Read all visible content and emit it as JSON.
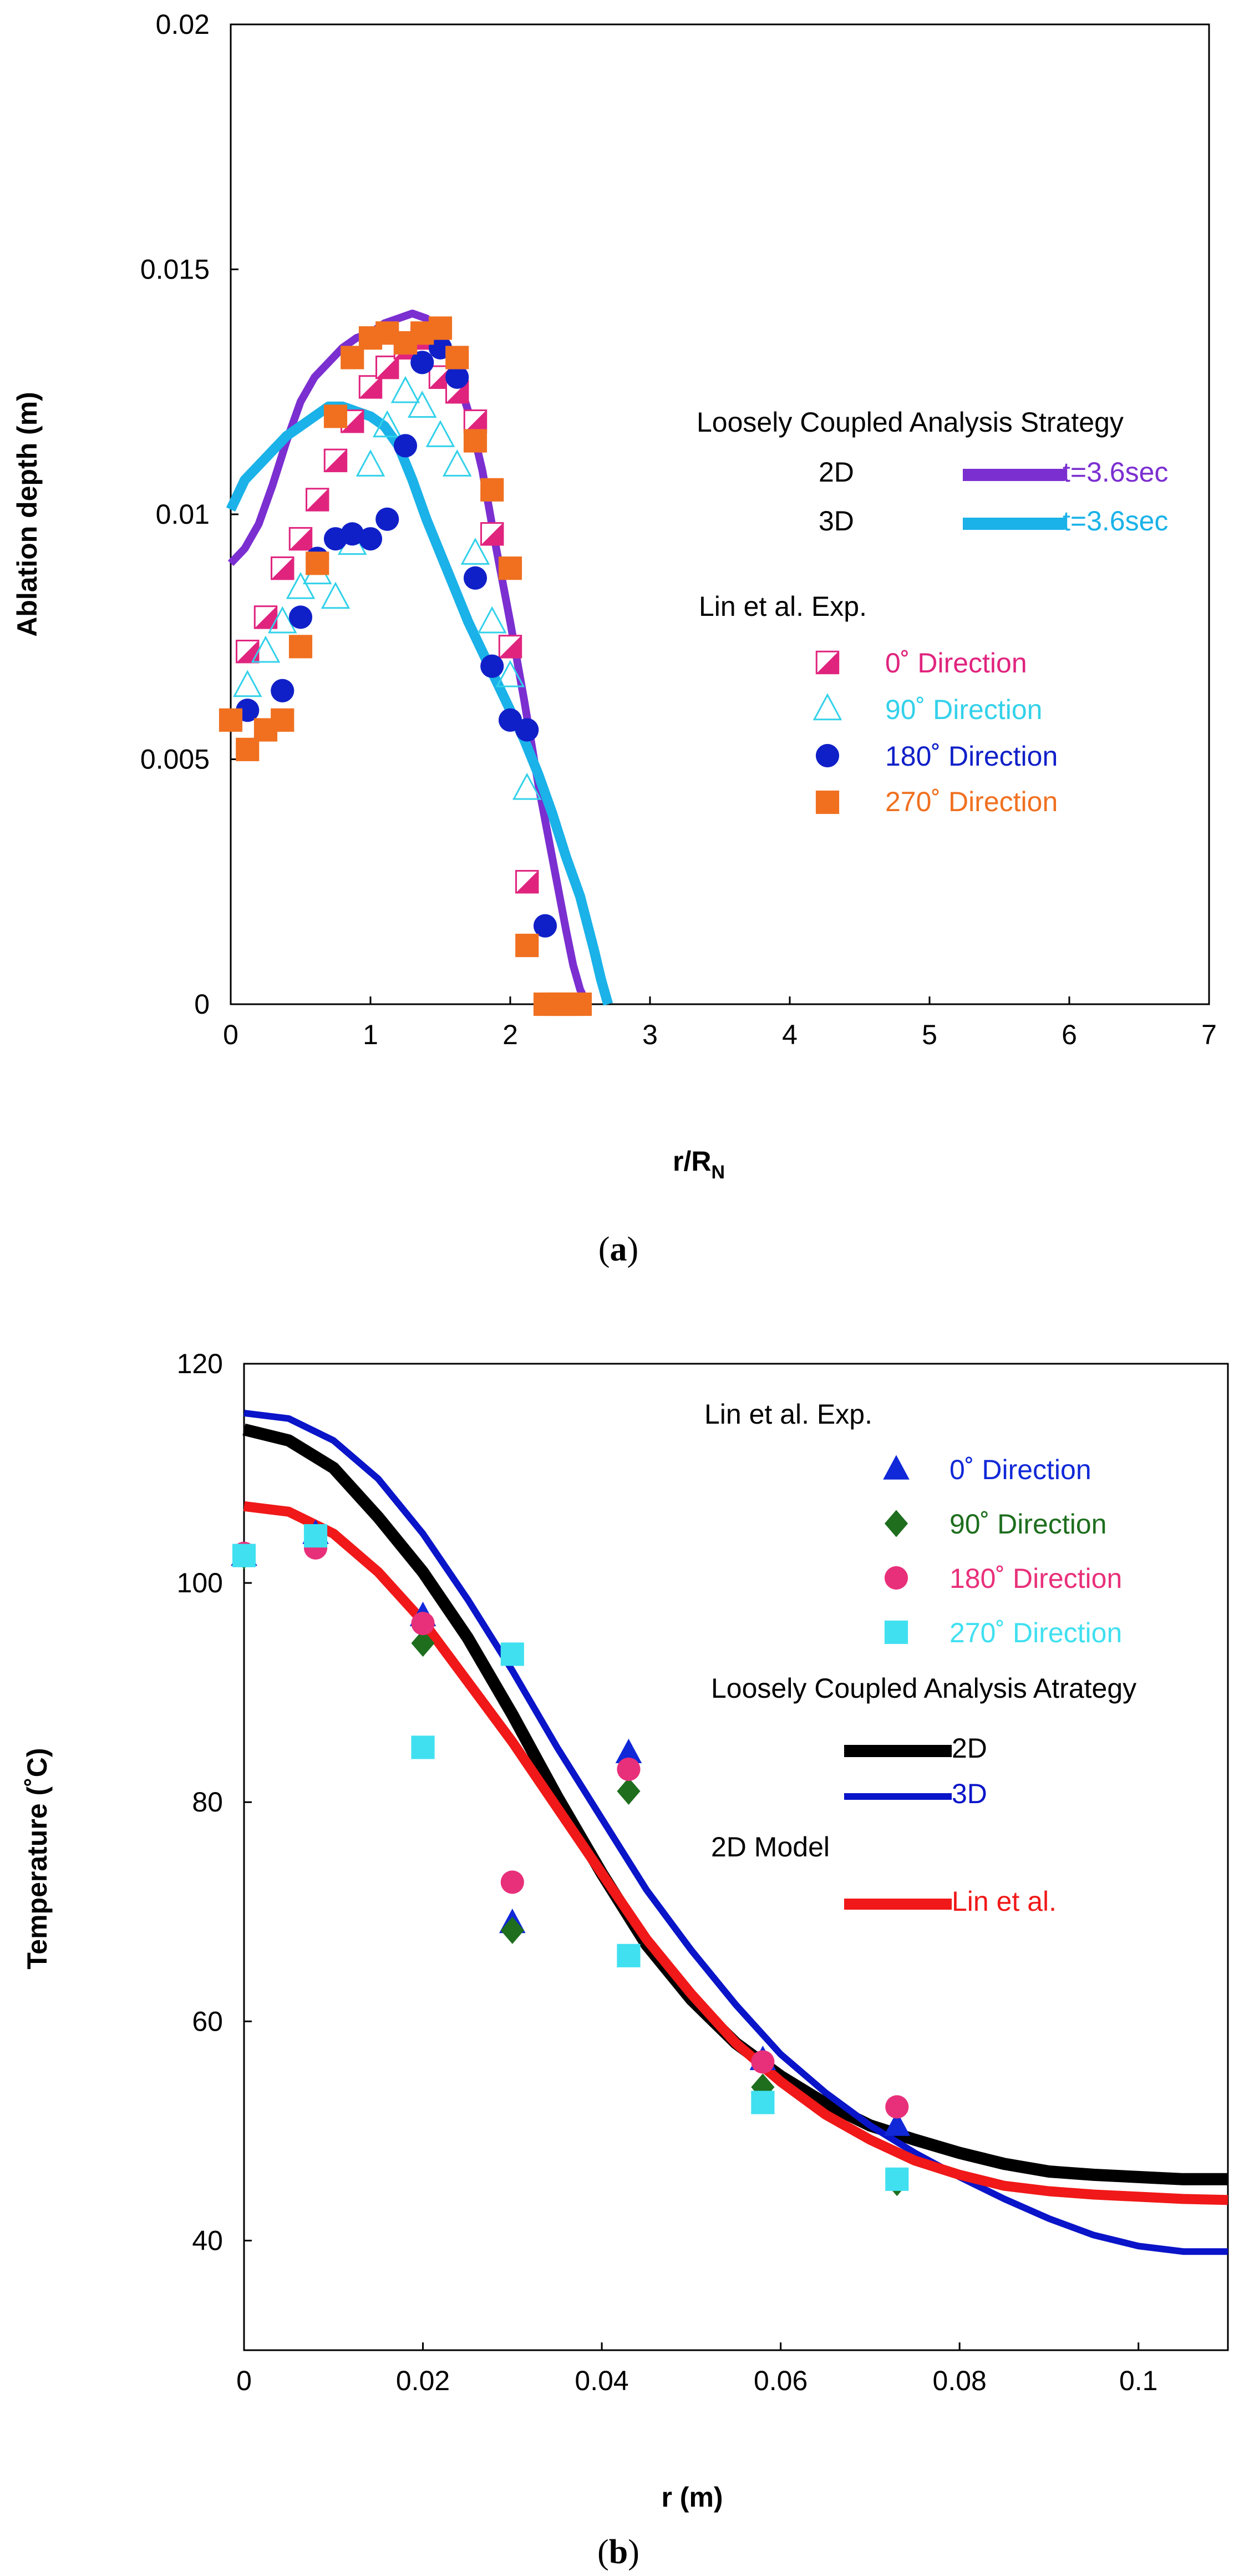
{
  "figure": {
    "panels": [
      "a",
      "b"
    ]
  },
  "chart_data": [
    {
      "panel": "a",
      "type": "scatter",
      "xlabel": "r/R",
      "xlabel_sub": "N",
      "ylabel": "Ablation depth (m)",
      "xlim": [
        0,
        7
      ],
      "ylim": [
        0,
        0.02
      ],
      "xticks": [
        0,
        1,
        2,
        3,
        4,
        5,
        6,
        7
      ],
      "xtick_labels": [
        "0",
        "1",
        "2",
        "3",
        "4",
        "5",
        "6",
        "7"
      ],
      "yticks": [
        0,
        0.005,
        0.01,
        0.015,
        0.02
      ],
      "ytick_labels": [
        "0",
        "0.005",
        "0.01",
        "0.015",
        "0.02"
      ],
      "grid": false,
      "legend": {
        "placement": "right",
        "line_title": "Loosely Coupled Analysis Strategy",
        "marker_title": "Lin et al. Exp."
      },
      "lines": [
        {
          "name": "2D",
          "label": "t=3.6sec",
          "color": "#7B2FD0",
          "x": [
            0,
            0.1,
            0.2,
            0.3,
            0.4,
            0.5,
            0.6,
            0.7,
            0.8,
            0.9,
            1.0,
            1.1,
            1.2,
            1.3,
            1.4,
            1.5,
            1.6,
            1.7,
            1.8,
            1.9,
            2.0,
            2.1,
            2.2,
            2.3,
            2.4,
            2.45,
            2.5,
            2.55
          ],
          "y": [
            0.009,
            0.0093,
            0.0098,
            0.0106,
            0.0115,
            0.0123,
            0.0128,
            0.0131,
            0.0134,
            0.0136,
            0.0137,
            0.0139,
            0.014,
            0.0141,
            0.014,
            0.0137,
            0.013,
            0.0121,
            0.0109,
            0.0093,
            0.0078,
            0.0062,
            0.0045,
            0.003,
            0.0015,
            0.0008,
            0.0003,
            0
          ]
        },
        {
          "name": "3D",
          "label": "t=3.6sec",
          "color": "#1AB2E8",
          "x": [
            0,
            0.1,
            0.2,
            0.3,
            0.4,
            0.5,
            0.6,
            0.7,
            0.8,
            0.9,
            1.0,
            1.1,
            1.2,
            1.3,
            1.4,
            1.5,
            1.6,
            1.7,
            1.8,
            1.9,
            2.0,
            2.1,
            2.2,
            2.3,
            2.4,
            2.5,
            2.6,
            2.65,
            2.7
          ],
          "y": [
            0.0101,
            0.0107,
            0.011,
            0.0113,
            0.0116,
            0.0118,
            0.012,
            0.0122,
            0.0122,
            0.0121,
            0.012,
            0.0118,
            0.0114,
            0.0107,
            0.0099,
            0.0092,
            0.0085,
            0.0078,
            0.0072,
            0.0066,
            0.006,
            0.0054,
            0.0047,
            0.0039,
            0.003,
            0.0022,
            0.0011,
            0.0005,
            0
          ]
        }
      ],
      "series": [
        {
          "name": "0˚  Direction",
          "marker": "half-square",
          "color": "#E0247E",
          "x": [
            0.12,
            0.25,
            0.37,
            0.5,
            0.62,
            0.75,
            0.87,
            1.0,
            1.12,
            1.25,
            1.37,
            1.5,
            1.62,
            1.75,
            1.87,
            2.0,
            2.12
          ],
          "y": [
            0.0072,
            0.0079,
            0.0089,
            0.0095,
            0.0103,
            0.0111,
            0.0119,
            0.0126,
            0.013,
            0.0134,
            0.0136,
            0.0128,
            0.0125,
            0.0119,
            0.0096,
            0.0073,
            0.0025
          ]
        },
        {
          "name": "90˚  Direction",
          "marker": "triangle-open",
          "color": "#33D1EA",
          "x": [
            0.12,
            0.25,
            0.37,
            0.5,
            0.62,
            0.75,
            0.87,
            1.0,
            1.12,
            1.25,
            1.37,
            1.5,
            1.62,
            1.75,
            1.87,
            2.0,
            2.12
          ],
          "y": [
            0.0065,
            0.0072,
            0.0078,
            0.0085,
            0.0088,
            0.0083,
            0.0094,
            0.011,
            0.0118,
            0.0125,
            0.0122,
            0.0116,
            0.011,
            0.0092,
            0.0078,
            0.0067,
            0.0044
          ]
        },
        {
          "name": "180˚  Direction",
          "marker": "circle",
          "color": "#1020C8",
          "x": [
            0.12,
            0.25,
            0.37,
            0.5,
            0.62,
            0.75,
            0.87,
            1.0,
            1.12,
            1.25,
            1.37,
            1.5,
            1.62,
            1.75,
            1.87,
            2.0,
            2.12,
            2.25
          ],
          "y": [
            0.006,
            0.0056,
            0.0064,
            0.0079,
            0.0091,
            0.0095,
            0.0096,
            0.0095,
            0.0099,
            0.0114,
            0.0131,
            0.0134,
            0.0128,
            0.0087,
            0.0069,
            0.0058,
            0.0056,
            0.0016
          ]
        },
        {
          "name": "270˚  Direction",
          "marker": "square",
          "color": "#F07020",
          "x": [
            0,
            0.12,
            0.25,
            0.37,
            0.5,
            0.62,
            0.75,
            0.87,
            1.0,
            1.12,
            1.25,
            1.37,
            1.5,
            1.62,
            1.75,
            1.87,
            2.0,
            2.12,
            2.25,
            2.3,
            2.35,
            2.4,
            2.45,
            2.5
          ],
          "y": [
            0.0058,
            0.0052,
            0.0056,
            0.0058,
            0.0073,
            0.009,
            0.012,
            0.0132,
            0.0136,
            0.0137,
            0.0135,
            0.0137,
            0.0138,
            0.0132,
            0.0115,
            0.0105,
            0.0089,
            0.0012,
            0,
            0,
            0,
            0,
            0,
            0
          ]
        }
      ]
    },
    {
      "panel": "b",
      "type": "scatter",
      "xlabel": "r (m)",
      "ylabel": "Temperature (˚C)",
      "xlim": [
        0,
        0.11
      ],
      "ylim": [
        30,
        120
      ],
      "xticks": [
        0,
        0.02,
        0.04,
        0.06,
        0.08,
        0.1
      ],
      "xtick_labels": [
        "0",
        "0.02",
        "0.04",
        "0.06",
        "0.08",
        "0.1"
      ],
      "yticks": [
        40,
        60,
        80,
        100,
        120
      ],
      "ytick_labels": [
        "40",
        "60",
        "80",
        "100",
        "120"
      ],
      "grid": false,
      "legend": {
        "placement": "right",
        "marker_title": "Lin et al. Exp.",
        "line_title": "Loosely Coupled Analysis Atrategy",
        "model_title": "2D Model"
      },
      "series": [
        {
          "name": "0˚  Direction",
          "marker": "triangle",
          "color": "#1028D8",
          "x": [
            0,
            0.008,
            0.02,
            0.03,
            0.043,
            0.058,
            0.073
          ],
          "y": [
            102.5,
            104.5,
            97,
            69,
            84.5,
            56.5,
            50.5
          ]
        },
        {
          "name": "90˚  Direction",
          "marker": "diamond",
          "color": "#1E6E1E",
          "x": [
            0,
            0.008,
            0.02,
            0.03,
            0.043,
            0.058,
            0.073
          ],
          "y": [
            102.5,
            103.5,
            94.5,
            68.3,
            81,
            54,
            45.3
          ]
        },
        {
          "name": "180˚  Direction",
          "marker": "circle",
          "color": "#E8307A",
          "x": [
            0,
            0.008,
            0.02,
            0.03,
            0.043,
            0.058,
            0.073
          ],
          "y": [
            102.7,
            103.2,
            96.3,
            72.7,
            83,
            56.3,
            52.2
          ]
        },
        {
          "name": "270˚  Direction",
          "marker": "square",
          "color": "#40E0F0",
          "x": [
            0,
            0.008,
            0.02,
            0.03,
            0.043,
            0.058,
            0.073
          ],
          "y": [
            102.5,
            104.3,
            85,
            93.5,
            66,
            52.6,
            45.6
          ]
        }
      ],
      "lines": [
        {
          "name": "2D",
          "color": "#000000",
          "x": [
            0,
            0.005,
            0.01,
            0.015,
            0.02,
            0.025,
            0.03,
            0.035,
            0.04,
            0.045,
            0.05,
            0.055,
            0.06,
            0.065,
            0.07,
            0.075,
            0.08,
            0.085,
            0.09,
            0.095,
            0.1,
            0.105,
            0.11
          ],
          "y": [
            114,
            113,
            110.5,
            106,
            101,
            95,
            88,
            80.5,
            73.5,
            67,
            62,
            58,
            55,
            52.5,
            50.5,
            49.2,
            48,
            47,
            46.3,
            46,
            45.8,
            45.6,
            45.6
          ]
        },
        {
          "name": "3D",
          "color": "#0A14C8",
          "x": [
            0,
            0.005,
            0.01,
            0.015,
            0.02,
            0.025,
            0.03,
            0.035,
            0.04,
            0.045,
            0.05,
            0.055,
            0.06,
            0.065,
            0.07,
            0.075,
            0.08,
            0.085,
            0.09,
            0.095,
            0.1,
            0.105,
            0.11
          ],
          "y": [
            115.5,
            115,
            113,
            109.5,
            104.5,
            98.5,
            92,
            85,
            78.5,
            72,
            66.5,
            61.5,
            57,
            53.5,
            50.5,
            48,
            45.8,
            43.8,
            42,
            40.5,
            39.5,
            39,
            39
          ]
        },
        {
          "name": "Lin et al.",
          "color": "#F01818",
          "x": [
            0,
            0.005,
            0.01,
            0.015,
            0.02,
            0.025,
            0.03,
            0.035,
            0.04,
            0.045,
            0.05,
            0.055,
            0.06,
            0.065,
            0.07,
            0.075,
            0.08,
            0.085,
            0.09,
            0.095,
            0.1,
            0.105,
            0.11
          ],
          "y": [
            107,
            106.5,
            104.5,
            101,
            96.5,
            91,
            85.5,
            79.5,
            73.5,
            67.5,
            62.5,
            58,
            54.5,
            51.5,
            49.2,
            47.3,
            46,
            45,
            44.5,
            44.2,
            44,
            43.8,
            43.7
          ]
        }
      ]
    }
  ]
}
